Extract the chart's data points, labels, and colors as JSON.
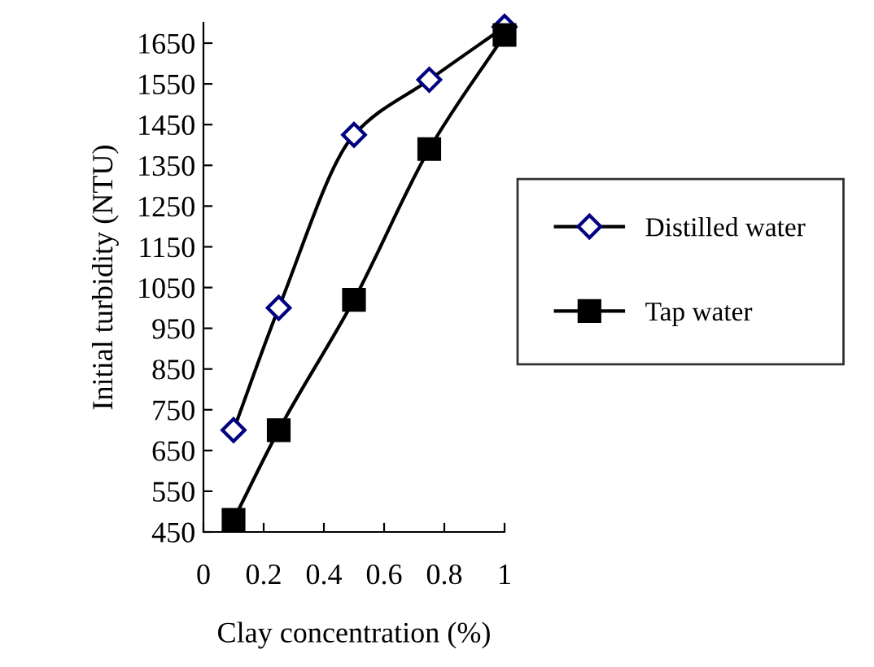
{
  "chart_data": {
    "type": "line",
    "xlabel": "Clay concentration (%)",
    "ylabel": "Initial turbidity (NTU)",
    "x": [
      0.1,
      0.25,
      0.5,
      0.75,
      1
    ],
    "series": [
      {
        "name": "Distilled water",
        "color": "#000080",
        "values": [
          700,
          1000,
          1425,
          1560,
          1690
        ],
        "marker": "diamond"
      },
      {
        "name": "Tap water",
        "color": "#000000",
        "values": [
          480,
          700,
          1020,
          1390,
          1670
        ],
        "marker": "square"
      }
    ],
    "xlim": [
      0,
      1
    ],
    "xticks": [
      0,
      0.2,
      0.4,
      0.6,
      0.8,
      1
    ],
    "ylim": [
      450,
      1700
    ],
    "yticks": [
      450,
      550,
      650,
      750,
      850,
      950,
      1050,
      1150,
      1250,
      1350,
      1450,
      1550,
      1650
    ],
    "grid": false,
    "legend": "right",
    "line_style": "solid"
  }
}
